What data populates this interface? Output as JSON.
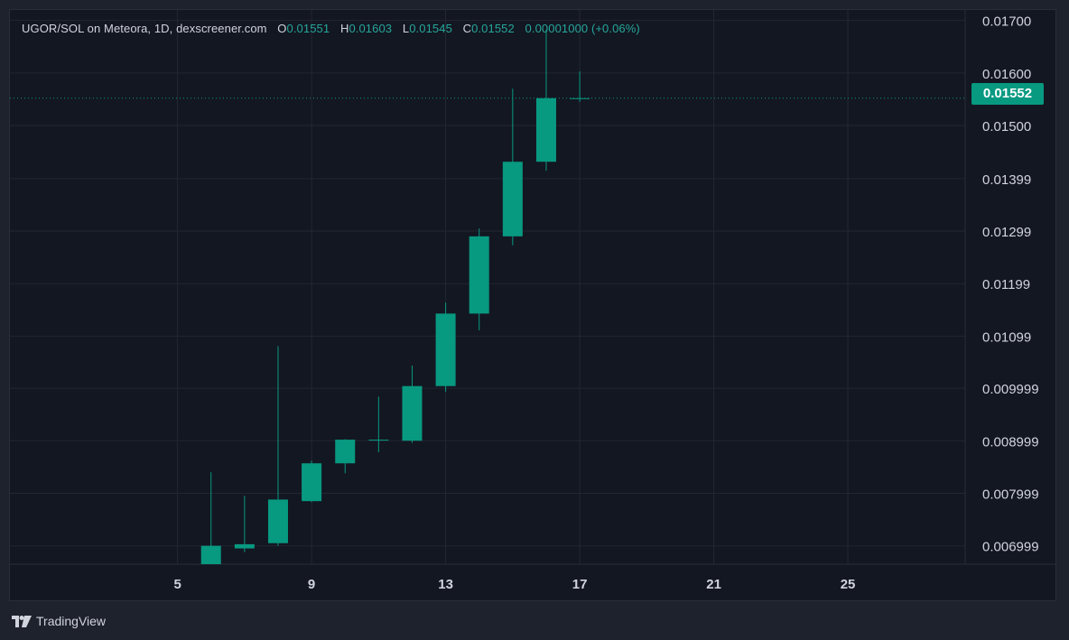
{
  "legend": {
    "title": "UGOR/SOL on Meteora, 1D, dexscreener.com",
    "open_label": "O",
    "open": "0.01551",
    "high_label": "H",
    "high": "0.01603",
    "low_label": "L",
    "low": "0.01545",
    "close_label": "C",
    "close": "0.01552",
    "change": "0.00001000 (+0.06%)"
  },
  "last_price_tag": "0.01552",
  "branding": "TradingView",
  "colors": {
    "background": "#131722",
    "up": "#089981",
    "grid": "#2a2e39",
    "text": "#d1d4dc"
  },
  "chart_data": {
    "type": "candlestick",
    "y_tick_labels": [
      "0.01700",
      "0.01600",
      "0.01500",
      "0.01399",
      "0.01299",
      "0.01199",
      "0.01099",
      "0.009999",
      "0.008999",
      "0.007999",
      "0.006999"
    ],
    "y_tick_values": [
      0.017,
      0.016,
      0.015,
      0.01399,
      0.01299,
      0.01199,
      0.01099,
      0.009999,
      0.008999,
      0.007999,
      0.006999
    ],
    "x_tick_labels": [
      "5",
      "9",
      "13",
      "17",
      "21",
      "25"
    ],
    "x_tick_values": [
      5,
      9,
      13,
      17,
      21,
      25
    ],
    "ylim": [
      0.00665,
      0.0172
    ],
    "xlim": [
      0,
      28.5
    ],
    "last_price": 0.01552,
    "grid": true,
    "candles": [
      {
        "day": 6,
        "open": 0.00665,
        "high": 0.0084,
        "low": 0.00665,
        "close": 0.007
      },
      {
        "day": 7,
        "open": 0.00695,
        "high": 0.00795,
        "low": 0.00688,
        "close": 0.00703
      },
      {
        "day": 8,
        "open": 0.00705,
        "high": 0.0108,
        "low": 0.007,
        "close": 0.00788
      },
      {
        "day": 9,
        "open": 0.00785,
        "high": 0.00862,
        "low": 0.00783,
        "close": 0.00857
      },
      {
        "day": 10,
        "open": 0.00857,
        "high": 0.00903,
        "low": 0.00838,
        "close": 0.00902
      },
      {
        "day": 11,
        "open": 0.00902,
        "high": 0.00984,
        "low": 0.00878,
        "close": 0.00902
      },
      {
        "day": 12,
        "open": 0.009,
        "high": 0.01043,
        "low": 0.00896,
        "close": 0.01004
      },
      {
        "day": 13,
        "open": 0.01004,
        "high": 0.01163,
        "low": 0.00993,
        "close": 0.01142
      },
      {
        "day": 14,
        "open": 0.01142,
        "high": 0.01304,
        "low": 0.0111,
        "close": 0.01289
      },
      {
        "day": 15,
        "open": 0.01289,
        "high": 0.0157,
        "low": 0.01272,
        "close": 0.01431
      },
      {
        "day": 16,
        "open": 0.01431,
        "high": 0.01682,
        "low": 0.01414,
        "close": 0.01552
      },
      {
        "day": 17,
        "open": 0.01551,
        "high": 0.01603,
        "low": 0.01545,
        "close": 0.01552
      }
    ]
  }
}
